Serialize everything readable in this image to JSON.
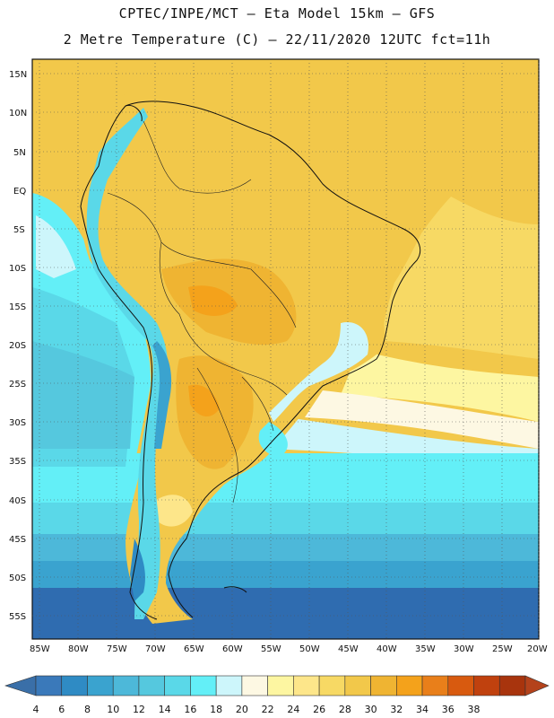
{
  "header": {
    "title_line1": "CPTEC/INPE/MCT –  Eta Model 15km – GFS",
    "title_line2": "2 Metre Temperature (C) – 22/11/2020 12UTC fct=11h"
  },
  "map": {
    "lat_labels": [
      "15N",
      "10N",
      "5N",
      "EQ",
      "5S",
      "10S",
      "15S",
      "20S",
      "25S",
      "30S",
      "35S",
      "40S",
      "45S",
      "50S",
      "55S"
    ],
    "lon_labels": [
      "85W",
      "80W",
      "75W",
      "70W",
      "65W",
      "60W",
      "55W",
      "50W",
      "45W",
      "40W",
      "35W",
      "30W",
      "25W",
      "20W"
    ],
    "lat_range": [
      15,
      -57
    ],
    "lon_range": [
      -85,
      -20
    ],
    "grid": true
  },
  "colorbar": {
    "values": [
      "4",
      "6",
      "8",
      "10",
      "12",
      "14",
      "16",
      "18",
      "20",
      "22",
      "24",
      "26",
      "28",
      "30",
      "32",
      "34",
      "36",
      "38"
    ],
    "colors": [
      "#3a79ba",
      "#2f8bc4",
      "#3aa3cf",
      "#4db8d9",
      "#55c8de",
      "#5ad8e8",
      "#63eff7",
      "#cdf6fb",
      "#fdf8e3",
      "#fdf6a1",
      "#fde68a",
      "#f7d964",
      "#f2c84a",
      "#efb432",
      "#f4a21b",
      "#e97f1a",
      "#d85a0f",
      "#c0410e",
      "#a8340d"
    ],
    "left_arrow_color": "#3a6fa8",
    "right_arrow_color": "#b4421b"
  }
}
